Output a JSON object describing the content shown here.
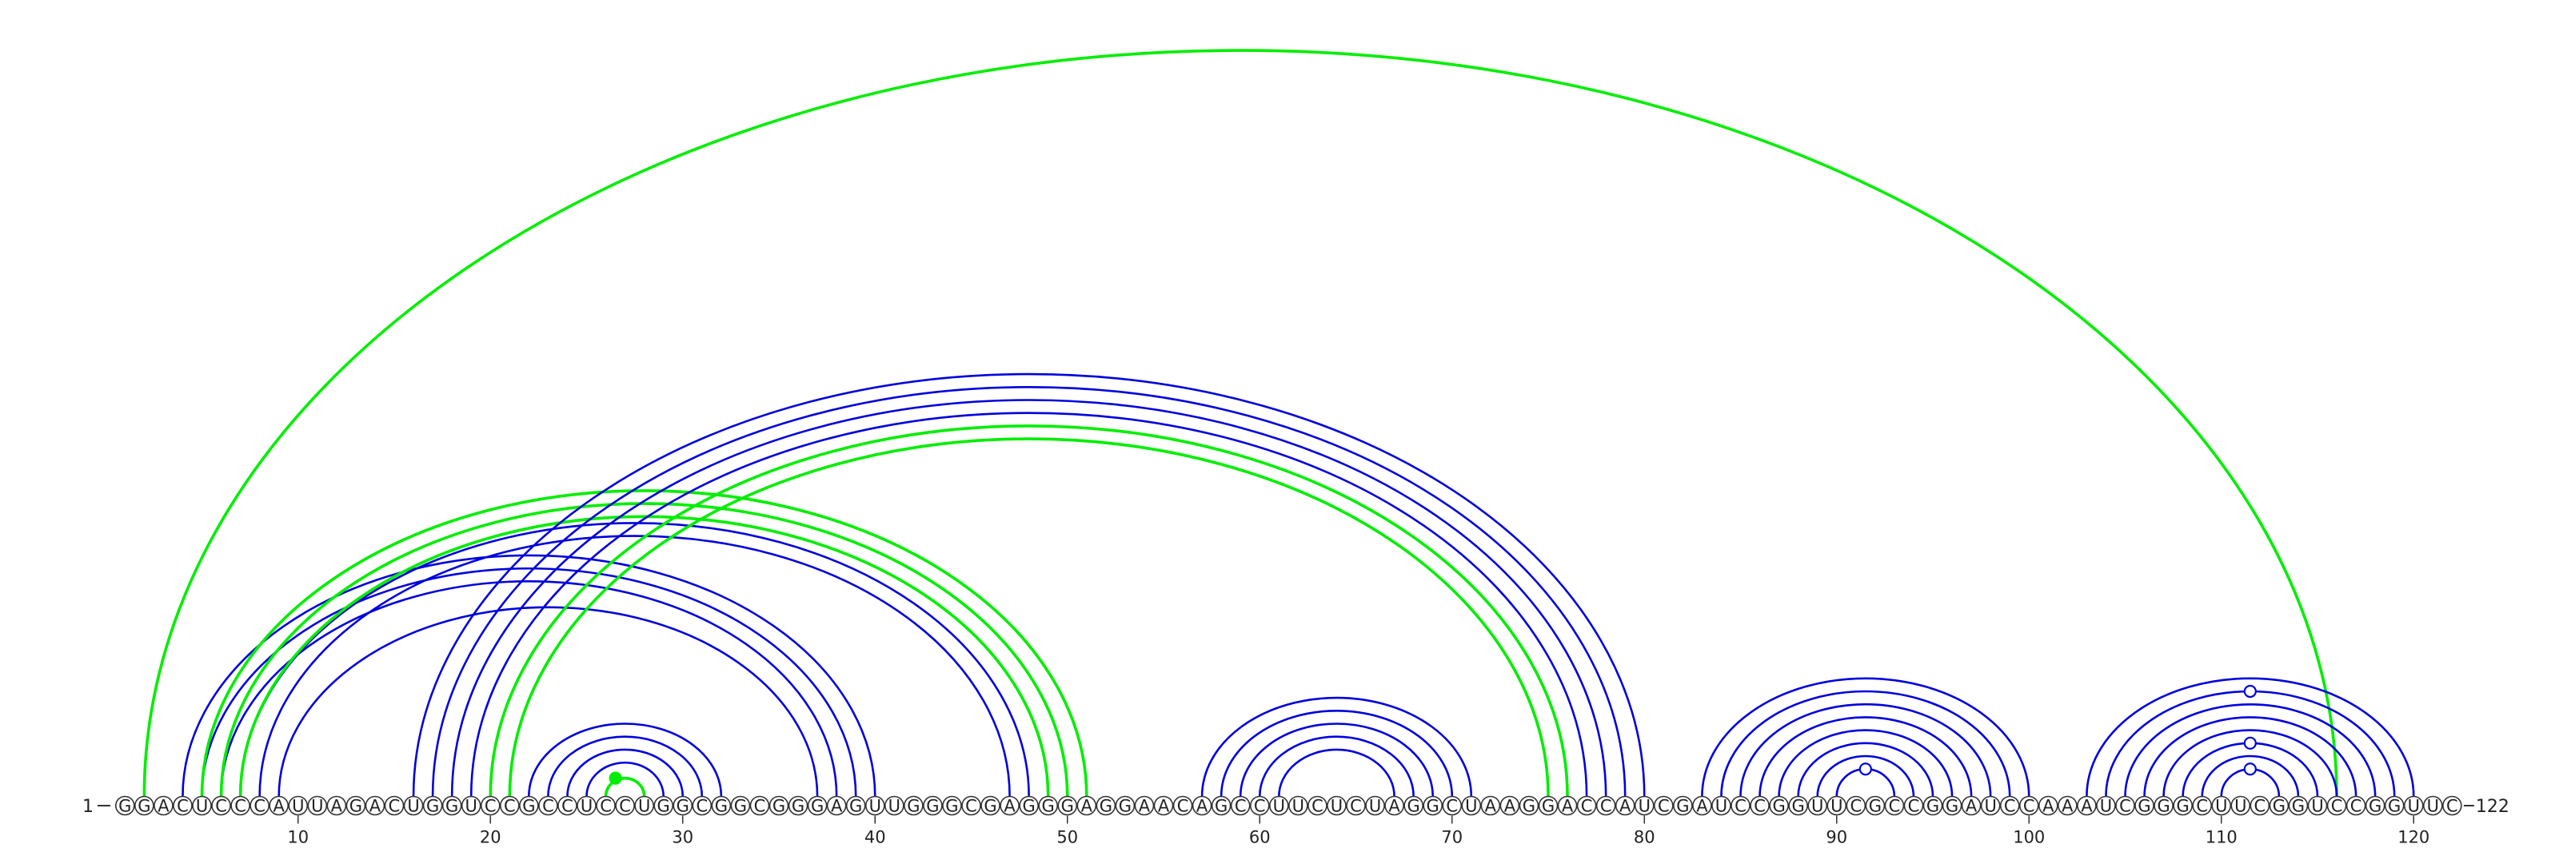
{
  "diagram": {
    "sequence": "GGACUCCCAUUAGACUGGUCCGCCUCCUGGCGGCGGGAGUUGGGCGAGGGAGGAACAGCCUUCUCUAGGCUAAGGACCAUCGAUCCGGUUCGCCGGAUCCAAAUCGGGCUUCGGUCCGGUUC",
    "start_label": "1",
    "end_label": "122",
    "ticks": [
      {
        "position": 10,
        "label": "10"
      },
      {
        "position": 20,
        "label": "20"
      },
      {
        "position": 30,
        "label": "30"
      },
      {
        "position": 40,
        "label": "40"
      },
      {
        "position": 50,
        "label": "50"
      },
      {
        "position": 60,
        "label": "60"
      },
      {
        "position": 70,
        "label": "70"
      },
      {
        "position": 80,
        "label": "80"
      },
      {
        "position": 90,
        "label": "90"
      },
      {
        "position": 100,
        "label": "100"
      },
      {
        "position": 110,
        "label": "110"
      },
      {
        "position": 120,
        "label": "120"
      }
    ],
    "colors": {
      "primary_arc": "#0000dd",
      "alternate_arc": "#00ee00",
      "nucleotide_stroke": "#333333"
    },
    "arcs": [
      {
        "i": 2,
        "j": 116,
        "color": "alternate"
      },
      {
        "i": 4,
        "j": 40,
        "color": "primary"
      },
      {
        "i": 5,
        "j": 39,
        "color": "primary"
      },
      {
        "i": 6,
        "j": 38,
        "color": "primary"
      },
      {
        "i": 7,
        "j": 48,
        "color": "primary"
      },
      {
        "i": 8,
        "j": 47,
        "color": "primary"
      },
      {
        "i": 9,
        "j": 37,
        "color": "primary"
      },
      {
        "i": 5,
        "j": 51,
        "color": "alternate"
      },
      {
        "i": 6,
        "j": 50,
        "color": "alternate"
      },
      {
        "i": 7,
        "j": 49,
        "color": "alternate"
      },
      {
        "i": 16,
        "j": 80,
        "color": "primary"
      },
      {
        "i": 17,
        "j": 79,
        "color": "primary"
      },
      {
        "i": 18,
        "j": 78,
        "color": "primary"
      },
      {
        "i": 19,
        "j": 77,
        "color": "primary"
      },
      {
        "i": 20,
        "j": 76,
        "color": "alternate"
      },
      {
        "i": 21,
        "j": 75,
        "color": "alternate"
      },
      {
        "i": 22,
        "j": 32,
        "color": "primary"
      },
      {
        "i": 23,
        "j": 31,
        "color": "primary"
      },
      {
        "i": 24,
        "j": 30,
        "color": "primary"
      },
      {
        "i": 25,
        "j": 29,
        "color": "primary"
      },
      {
        "i": 26,
        "j": 28,
        "color": "alternate"
      },
      {
        "i": 57,
        "j": 71,
        "color": "primary"
      },
      {
        "i": 58,
        "j": 70,
        "color": "primary"
      },
      {
        "i": 59,
        "j": 69,
        "color": "primary"
      },
      {
        "i": 60,
        "j": 68,
        "color": "primary"
      },
      {
        "i": 61,
        "j": 67,
        "color": "primary"
      },
      {
        "i": 83,
        "j": 100,
        "color": "primary"
      },
      {
        "i": 84,
        "j": 99,
        "color": "primary"
      },
      {
        "i": 85,
        "j": 98,
        "color": "primary"
      },
      {
        "i": 86,
        "j": 97,
        "color": "primary"
      },
      {
        "i": 87,
        "j": 96,
        "color": "primary"
      },
      {
        "i": 88,
        "j": 95,
        "color": "primary"
      },
      {
        "i": 89,
        "j": 94,
        "color": "primary"
      },
      {
        "i": 90,
        "j": 93,
        "color": "primary"
      },
      {
        "i": 103,
        "j": 120,
        "color": "primary"
      },
      {
        "i": 104,
        "j": 119,
        "color": "primary"
      },
      {
        "i": 105,
        "j": 118,
        "color": "primary"
      },
      {
        "i": 106,
        "j": 117,
        "color": "primary"
      },
      {
        "i": 107,
        "j": 116,
        "color": "primary"
      },
      {
        "i": 108,
        "j": 115,
        "color": "primary"
      },
      {
        "i": 109,
        "j": 114,
        "color": "primary"
      },
      {
        "i": 110,
        "j": 113,
        "color": "primary"
      }
    ],
    "markers": [
      {
        "position": 26.5,
        "arc_index": 4,
        "group": "22-32",
        "filled": true,
        "color": "alternate"
      },
      {
        "position": 91.5,
        "arc_index": 7,
        "group": "83-100",
        "filled": false,
        "color": "primary"
      },
      {
        "position": 111.5,
        "arc_index": 7,
        "group": "103-120",
        "filled": false,
        "color": "primary"
      },
      {
        "position": 111.5,
        "arc_index": 5,
        "group": "103-120",
        "filled": false,
        "color": "primary"
      },
      {
        "position": 111.5,
        "arc_index": 1,
        "group": "103-120",
        "filled": false,
        "color": "primary"
      }
    ]
  }
}
